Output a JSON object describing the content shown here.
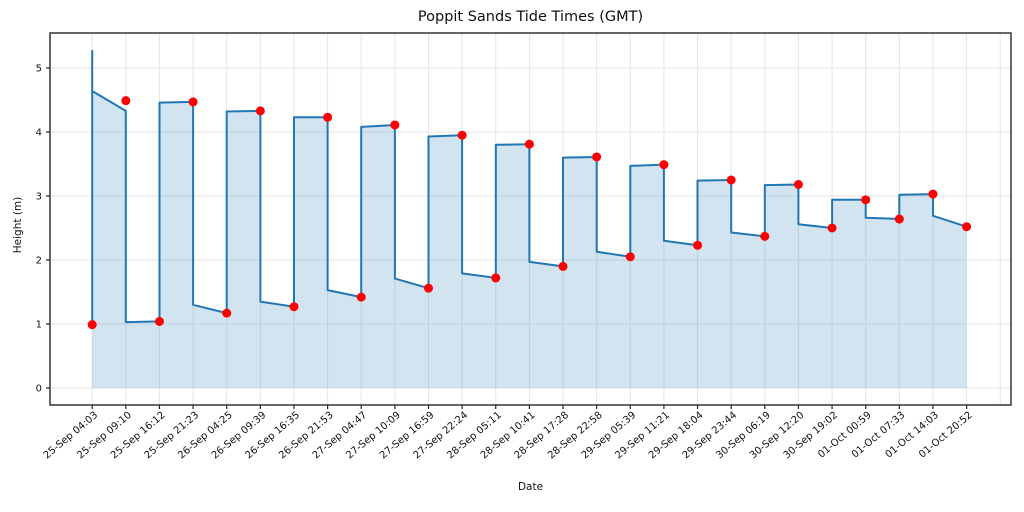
{
  "chart": {
    "title": "Poppit Sands Tide Times (GMT)",
    "xlabel": "Date",
    "ylabel": "Height (m)"
  },
  "chart_data": {
    "type": "line",
    "title": "Poppit Sands Tide Times (GMT)",
    "xlabel": "Date",
    "ylabel": "Height (m)",
    "grid": true,
    "legend_position": "none",
    "ylim": [
      -0.23,
      5.55
    ],
    "yticks": [
      0,
      1,
      2,
      3,
      4,
      5
    ],
    "categories": [
      "25-Sep 04:03",
      "25-Sep 09:10",
      "25-Sep 16:12",
      "25-Sep 21:23",
      "26-Sep 04:25",
      "26-Sep 09:39",
      "26-Sep 16:35",
      "26-Sep 21:53",
      "27-Sep 04:47",
      "27-Sep 10:09",
      "27-Sep 16:59",
      "27-Sep 22:24",
      "28-Sep 05:11",
      "28-Sep 10:41",
      "28-Sep 17:28",
      "28-Sep 22:58",
      "29-Sep 05:39",
      "29-Sep 11:21",
      "29-Sep 18:04",
      "29-Sep 23:44",
      "30-Sep 06:19",
      "30-Sep 12:20",
      "30-Sep 19:02",
      "01-Oct 00:59",
      "01-Oct 07:33",
      "01-Oct 14:03",
      "01-Oct 20:52"
    ],
    "series": [
      {
        "name": "tide-height-curve",
        "type": "line",
        "color": "#1f77b4",
        "line_width": 2,
        "fill_to_zero": true,
        "fill_color_rgba": "rgba(31,119,180,0.2)",
        "path_points": [
          [
            1,
            5.28
          ],
          [
            1,
            0.99
          ],
          [
            1,
            4.64
          ],
          [
            2,
            4.33
          ],
          [
            2,
            1.03
          ],
          [
            3,
            1.04
          ],
          [
            3,
            4.46
          ],
          [
            4,
            4.47
          ],
          [
            4,
            1.3
          ],
          [
            5,
            1.17
          ],
          [
            5,
            4.32
          ],
          [
            6,
            4.33
          ],
          [
            6,
            1.35
          ],
          [
            7,
            1.27
          ],
          [
            7,
            4.23
          ],
          [
            8,
            4.23
          ],
          [
            8,
            1.53
          ],
          [
            9,
            1.42
          ],
          [
            9,
            4.08
          ],
          [
            10,
            4.11
          ],
          [
            10,
            1.71
          ],
          [
            11,
            1.56
          ],
          [
            11,
            3.93
          ],
          [
            12,
            3.95
          ],
          [
            12,
            1.79
          ],
          [
            13,
            1.72
          ],
          [
            13,
            3.8
          ],
          [
            14,
            3.81
          ],
          [
            14,
            1.97
          ],
          [
            15,
            1.9
          ],
          [
            15,
            3.6
          ],
          [
            16,
            3.61
          ],
          [
            16,
            2.13
          ],
          [
            17,
            2.05
          ],
          [
            17,
            3.47
          ],
          [
            18,
            3.49
          ],
          [
            18,
            2.3
          ],
          [
            19,
            2.23
          ],
          [
            19,
            3.24
          ],
          [
            20,
            3.25
          ],
          [
            20,
            2.43
          ],
          [
            21,
            2.37
          ],
          [
            21,
            3.17
          ],
          [
            22,
            3.18
          ],
          [
            22,
            2.56
          ],
          [
            23,
            2.5
          ],
          [
            23,
            2.94
          ],
          [
            24,
            2.94
          ],
          [
            24,
            2.66
          ],
          [
            25,
            2.64
          ],
          [
            25,
            3.02
          ],
          [
            26,
            3.03
          ],
          [
            26,
            2.69
          ],
          [
            27,
            2.52
          ]
        ]
      },
      {
        "name": "tide-extremes",
        "type": "scatter",
        "color": "#ff0000",
        "marker_radius": 4.5,
        "values": [
          0.99,
          4.49,
          1.04,
          4.47,
          1.17,
          4.33,
          1.27,
          4.23,
          1.42,
          4.11,
          1.56,
          3.95,
          1.72,
          3.81,
          1.9,
          3.61,
          2.05,
          3.49,
          2.23,
          3.25,
          2.37,
          3.18,
          2.5,
          2.94,
          2.64,
          3.03,
          2.52
        ]
      }
    ],
    "style": {
      "grid_color": "#e6e6e6",
      "spine_color": "#262626",
      "tick_color": "#262626",
      "extra_unlabeled_gridline_index": 28
    }
  }
}
